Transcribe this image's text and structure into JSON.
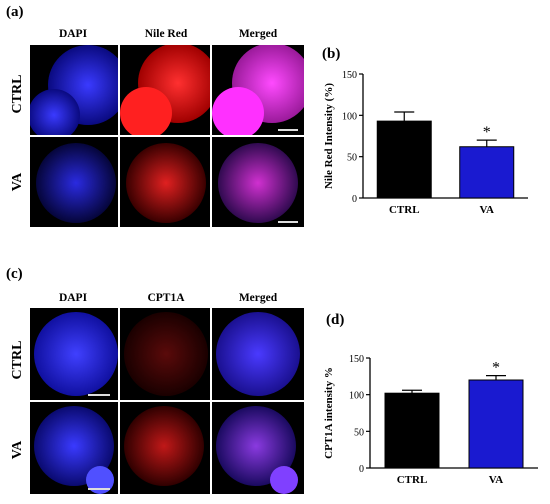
{
  "panel_a": {
    "letter": "(a)",
    "columns": [
      "DAPI",
      "Nile Red",
      "Merged"
    ],
    "rows": [
      "CTRL",
      "VA"
    ]
  },
  "panel_b": {
    "letter": "(b)",
    "chart_data": {
      "type": "bar",
      "categories": [
        "CTRL",
        "VA"
      ],
      "values": [
        93,
        62
      ],
      "errors": [
        11,
        8
      ],
      "colors": [
        "#000000",
        "#1a1ad0"
      ],
      "ylabel": "Nile Red Intensity (%)",
      "ylim": [
        0,
        150
      ],
      "yticks": [
        0,
        50,
        100,
        150
      ],
      "significance": [
        "",
        "*"
      ]
    }
  },
  "panel_c": {
    "letter": "(c)",
    "columns": [
      "DAPI",
      "CPT1A",
      "Merged"
    ],
    "rows": [
      "CTRL",
      "VA"
    ]
  },
  "panel_d": {
    "letter": "(d)",
    "chart_data": {
      "type": "bar",
      "categories": [
        "CTRL",
        "VA"
      ],
      "values": [
        102,
        120
      ],
      "errors": [
        4,
        6
      ],
      "colors": [
        "#000000",
        "#1a1ad0"
      ],
      "ylabel": "CPT1A intensity %",
      "ylim": [
        0,
        150
      ],
      "yticks": [
        0,
        50,
        100,
        150
      ],
      "significance": [
        "",
        "*"
      ]
    }
  }
}
